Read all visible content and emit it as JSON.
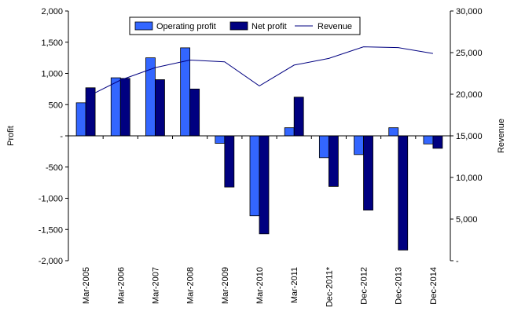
{
  "chart_data": {
    "type": "bar",
    "categories": [
      "Mar-2005",
      "Mar-2006",
      "Mar-2007",
      "Mar-2008",
      "Mar-2009",
      "Mar-2010",
      "Mar-2011",
      "Dec-2011*",
      "Dec-2012",
      "Dec-2013",
      "Dec-2014"
    ],
    "series": [
      {
        "name": "Operating profit",
        "type": "bar",
        "axis": "left",
        "color": "#3366ff",
        "values": [
          530,
          930,
          1250,
          1410,
          -120,
          -1280,
          130,
          -350,
          -300,
          130,
          -130
        ]
      },
      {
        "name": "Net profit",
        "type": "bar",
        "axis": "left",
        "color": "#000080",
        "values": [
          770,
          920,
          900,
          750,
          -820,
          -1570,
          620,
          -810,
          -1190,
          -1830,
          -200
        ]
      },
      {
        "name": "Revenue",
        "type": "line",
        "axis": "right",
        "color": "#000080",
        "values": [
          19600,
          21700,
          23200,
          24100,
          23900,
          21000,
          23500,
          24300,
          25700,
          25600,
          24900
        ]
      }
    ],
    "ylabel": "Profit",
    "y2label": "Revenue",
    "ylim": [
      -2000,
      2000
    ],
    "y2lim": [
      0,
      30000
    ],
    "yticks": [
      2000,
      1500,
      1000,
      500,
      0,
      -500,
      -1000,
      -1500,
      -2000
    ],
    "ytick_labels": [
      "2,000",
      "1,500",
      "1,000",
      "500",
      "-",
      "-500",
      "-1,000",
      "-1,500",
      "-2,000"
    ],
    "y2ticks": [
      30000,
      25000,
      20000,
      15000,
      10000,
      5000,
      0
    ],
    "y2tick_labels": [
      "30,000",
      "25,000",
      "20,000",
      "15,000",
      "10,000",
      "5,000",
      "-"
    ],
    "legend_position": "top-center",
    "grid": false
  }
}
